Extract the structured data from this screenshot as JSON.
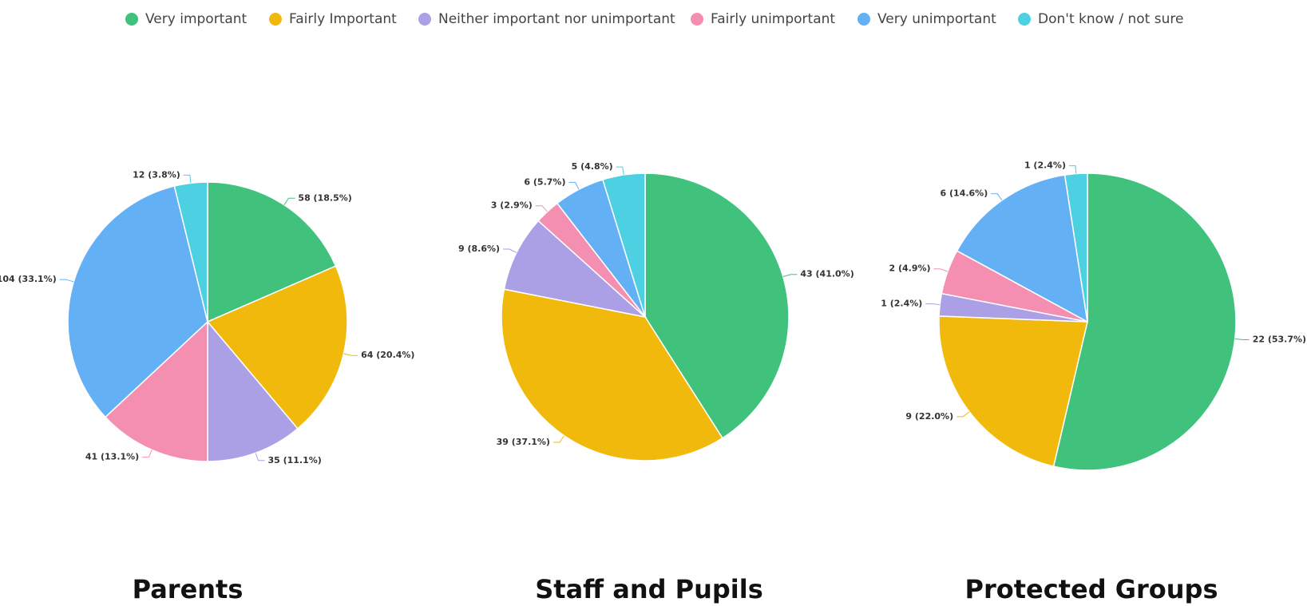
{
  "chart_data": {
    "type": "pie",
    "categories": [
      "Very important",
      "Fairly Important",
      "Neither important nor unimportant",
      "Fairly unimportant",
      "Very unimportant",
      "Don't know / not sure"
    ],
    "colors": [
      "#40c27d",
      "#f2b90d",
      "#ab9fe6",
      "#f48fb1",
      "#64b0f4",
      "#4dd0e1"
    ],
    "series": [
      {
        "name": "Parents",
        "values": [
          58,
          64,
          35,
          41,
          104,
          12
        ],
        "value_labels": [
          "58 (18.5%)",
          "64 (20.4%)",
          "35 (11.1%)",
          "41 (13.1%)",
          "104 (33.1%)",
          "12 (3.8%)"
        ]
      },
      {
        "name": "Staff and Pupils",
        "values": [
          43,
          39,
          9,
          3,
          6,
          5
        ],
        "value_labels": [
          "43 (41.0%)",
          "39 (37.1%)",
          "9 (8.6%)",
          "3 (2.9%)",
          "6 (5.7%)",
          "5 (4.8%)"
        ]
      },
      {
        "name": "Protected Groups",
        "values": [
          22,
          9,
          1,
          2,
          6,
          1
        ],
        "value_labels": [
          "22 (53.7%)",
          "9 (22.0%)",
          "1 (2.4%)",
          "2 (4.9%)",
          "6 (14.6%)",
          "1 (2.4%)"
        ]
      }
    ]
  }
}
